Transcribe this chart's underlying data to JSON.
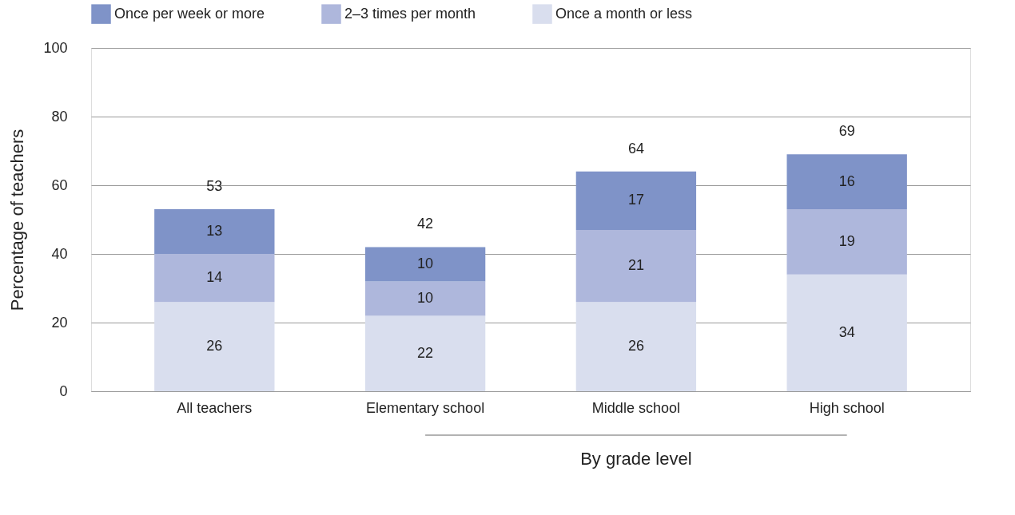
{
  "chart_data": {
    "type": "bar",
    "stacked": true,
    "categories": [
      "All teachers",
      "Elementary school",
      "Middle school",
      "High school"
    ],
    "series": [
      {
        "name": "Once a month or less",
        "color": "#d9deee",
        "values": [
          26,
          22,
          26,
          34
        ]
      },
      {
        "name": "2–3 times per month",
        "color": "#aeb7dc",
        "values": [
          14,
          10,
          21,
          19
        ]
      },
      {
        "name": "Once per week or more",
        "color": "#7f93c8",
        "values": [
          13,
          10,
          17,
          16
        ]
      }
    ],
    "totals": [
      "53",
      "42",
      "64",
      "69"
    ],
    "data_labels": true,
    "ylabel": "Percentage of teachers",
    "annotations": [
      "By grade level"
    ],
    "ylim": [
      0,
      100
    ],
    "yticks": [
      0,
      20,
      40,
      60,
      80,
      100
    ],
    "grid": "y",
    "legend": "top"
  }
}
